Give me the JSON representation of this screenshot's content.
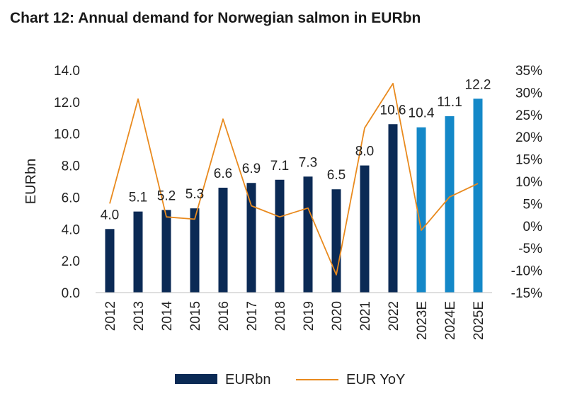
{
  "title": "Chart 12: Annual demand for Norwegian salmon in EURbn",
  "chart_data": {
    "type": "bar+line",
    "categories": [
      "2012",
      "2013",
      "2014",
      "2015",
      "2016",
      "2017",
      "2018",
      "2019",
      "2020",
      "2021",
      "2022",
      "2023E",
      "2024E",
      "2025E"
    ],
    "bar_series": {
      "name": "EURbn",
      "values": [
        4.0,
        5.1,
        5.2,
        5.3,
        6.6,
        6.9,
        7.1,
        7.3,
        6.5,
        8.0,
        10.6,
        10.4,
        11.1,
        12.2
      ],
      "data_labels": [
        "4.0",
        "5.1",
        "5.2",
        "5.3",
        "6.6",
        "6.9",
        "7.1",
        "7.3",
        "6.5",
        "8.0",
        "10.6",
        "10.4",
        "11.1",
        "12.2"
      ],
      "colors": [
        "#0b2a55",
        "#0b2a55",
        "#0b2a55",
        "#0b2a55",
        "#0b2a55",
        "#0b2a55",
        "#0b2a55",
        "#0b2a55",
        "#0b2a55",
        "#0b2a55",
        "#0b2a55",
        "#1488c8",
        "#1488c8",
        "#1488c8"
      ]
    },
    "line_series": {
      "name": "EUR YoY",
      "values": [
        5.0,
        28.5,
        2.0,
        1.5,
        24.0,
        4.5,
        2.0,
        4.0,
        -11.0,
        22.0,
        32.0,
        -1.0,
        6.5,
        9.5
      ],
      "color": "#e98a1e"
    },
    "ylabel": "EURbn",
    "ylim": [
      0,
      14
    ],
    "y_ticks": [
      "0.0",
      "2.0",
      "4.0",
      "6.0",
      "8.0",
      "10.0",
      "12.0",
      "14.0"
    ],
    "y2lim": [
      -15,
      35
    ],
    "y2_ticks": [
      "-15%",
      "-10%",
      "-5%",
      "0%",
      "5%",
      "10%",
      "15%",
      "20%",
      "25%",
      "30%",
      "35%"
    ],
    "grid": false,
    "legend_position": "bottom"
  }
}
